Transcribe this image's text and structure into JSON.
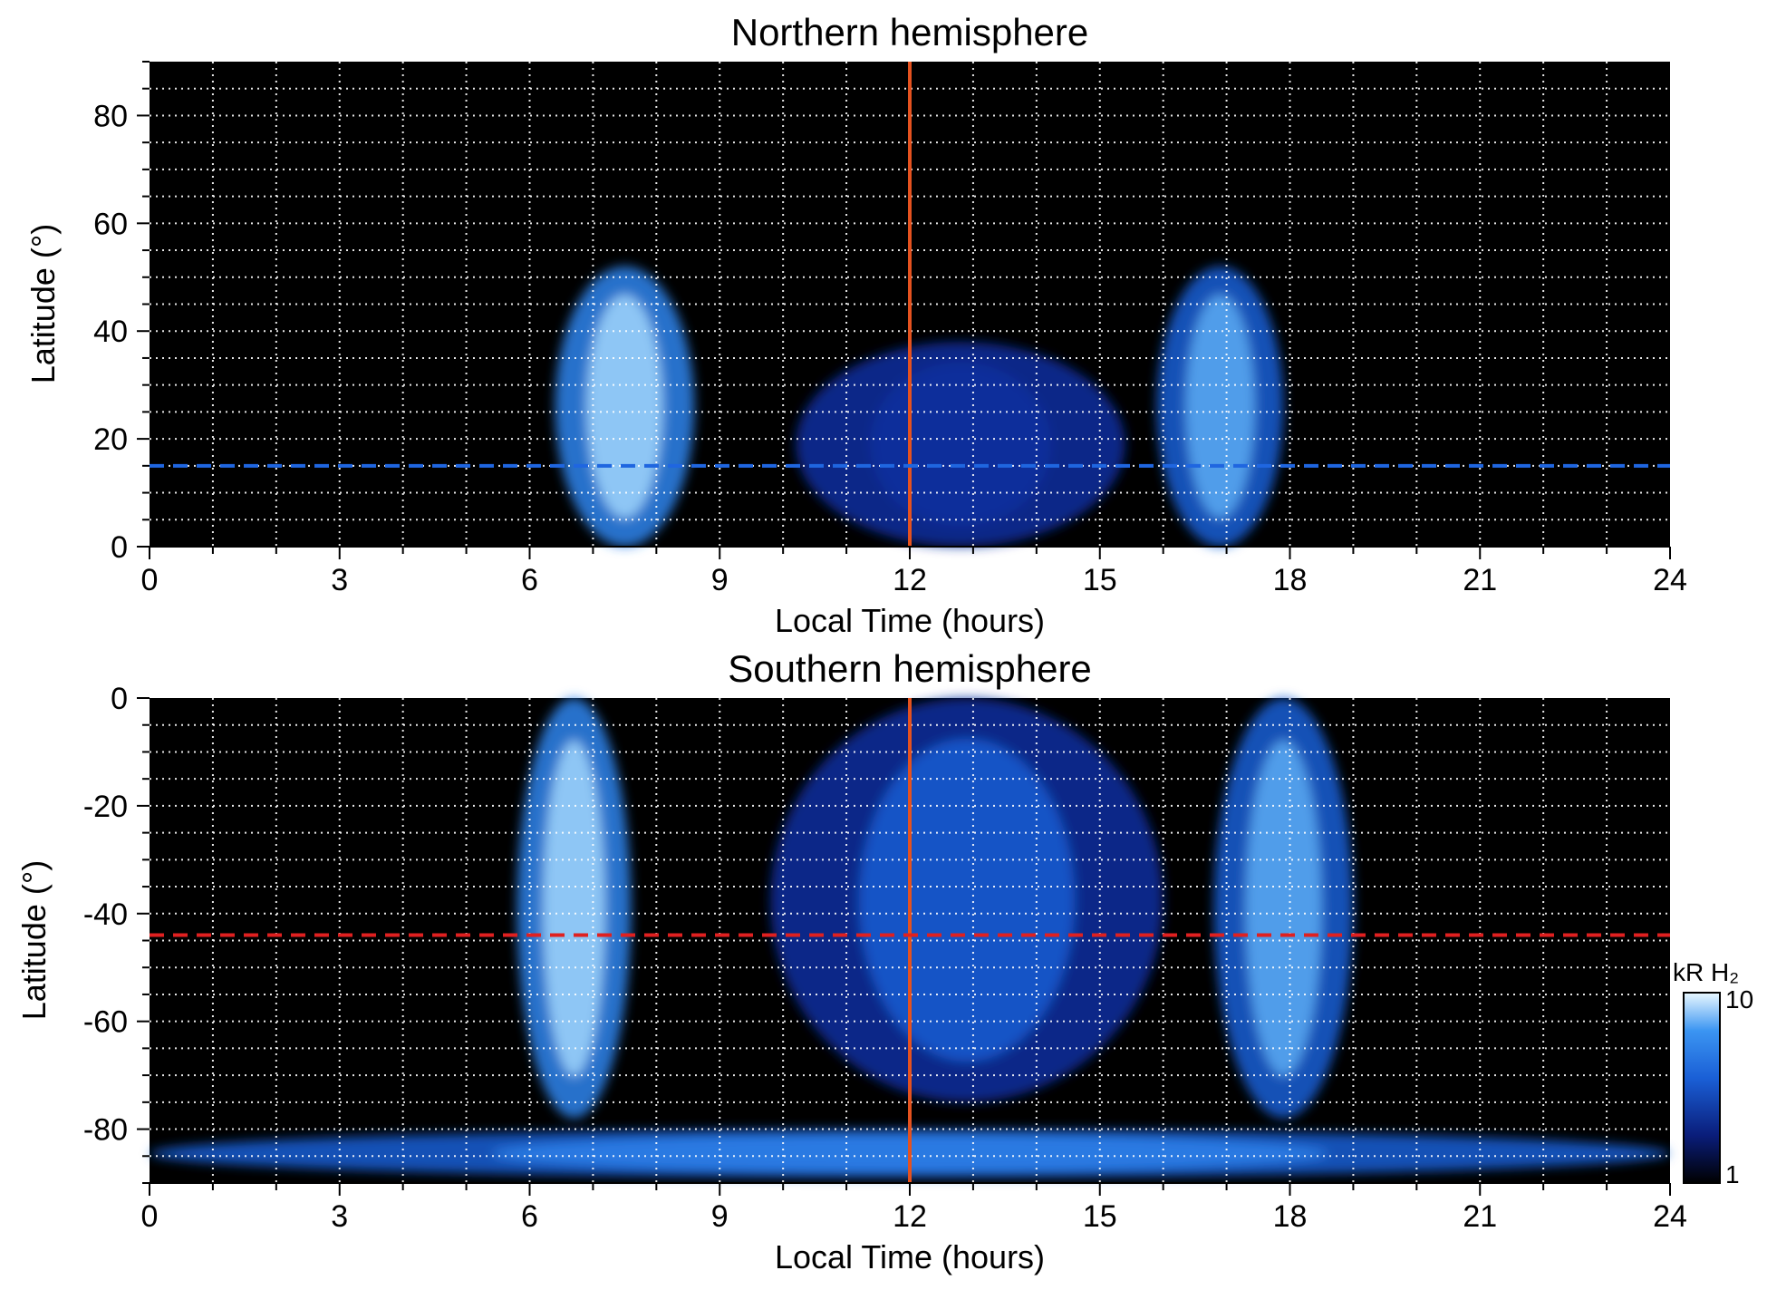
{
  "chart_data": [
    {
      "type": "heatmap",
      "title": "Northern hemisphere",
      "xlabel": "Local Time (hours)",
      "ylabel": "Latitude (°)",
      "xlim": [
        0,
        24
      ],
      "ylim": [
        0,
        90
      ],
      "xticks": [
        "0",
        "3",
        "6",
        "9",
        "12",
        "15",
        "18",
        "21",
        "24"
      ],
      "yticks": [
        "0",
        "20",
        "40",
        "60",
        "80"
      ],
      "grid": true,
      "background_color": "#000000",
      "colormap": [
        "#000000",
        "#0a1d7a",
        "#1a5fd6",
        "#3b95f2",
        "#c9ecff"
      ],
      "reference_lines": [
        {
          "orientation": "vertical",
          "value": 12,
          "style": "solid",
          "color": "#e4521f"
        },
        {
          "orientation": "horizontal",
          "value": 15,
          "style": "dashed",
          "color": "#1f66e0"
        }
      ],
      "emission_regions": [
        {
          "x": [
            6.4,
            8.6
          ],
          "y": [
            0,
            52
          ],
          "intensity": 8
        },
        {
          "x": [
            15.9,
            17.9
          ],
          "y": [
            0,
            52
          ],
          "intensity": 6
        },
        {
          "x": [
            10.2,
            15.4
          ],
          "y": [
            0,
            38
          ],
          "intensity": 2
        }
      ]
    },
    {
      "type": "heatmap",
      "title": "Southern hemisphere",
      "xlabel": "Local Time (hours)",
      "ylabel": "Latitude (°)",
      "xlim": [
        0,
        24
      ],
      "ylim": [
        -90,
        0
      ],
      "xticks": [
        "0",
        "3",
        "6",
        "9",
        "12",
        "15",
        "18",
        "21",
        "24"
      ],
      "yticks": [
        "0",
        "-20",
        "-40",
        "-60",
        "-80"
      ],
      "grid": true,
      "background_color": "#000000",
      "colormap": [
        "#000000",
        "#0a1d7a",
        "#1a5fd6",
        "#3b95f2",
        "#c9ecff"
      ],
      "reference_lines": [
        {
          "orientation": "vertical",
          "value": 12,
          "style": "solid",
          "color": "#e4521f"
        },
        {
          "orientation": "horizontal",
          "value": -44,
          "style": "dashed",
          "color": "#e02020"
        }
      ],
      "emission_regions": [
        {
          "x": [
            5.8,
            7.6
          ],
          "y": [
            -78,
            0
          ],
          "intensity": 8
        },
        {
          "x": [
            16.8,
            19.0
          ],
          "y": [
            -78,
            0
          ],
          "intensity": 6
        },
        {
          "x": [
            9.8,
            16.0
          ],
          "y": [
            -75,
            0
          ],
          "intensity": 3
        },
        {
          "x": [
            0,
            24
          ],
          "y": [
            -89,
            -80
          ],
          "intensity": 5
        }
      ],
      "colorbar": {
        "label": "kR H₂",
        "min_label": "1",
        "max_label": "10",
        "range": [
          1,
          10
        ],
        "scale": "log"
      }
    }
  ]
}
